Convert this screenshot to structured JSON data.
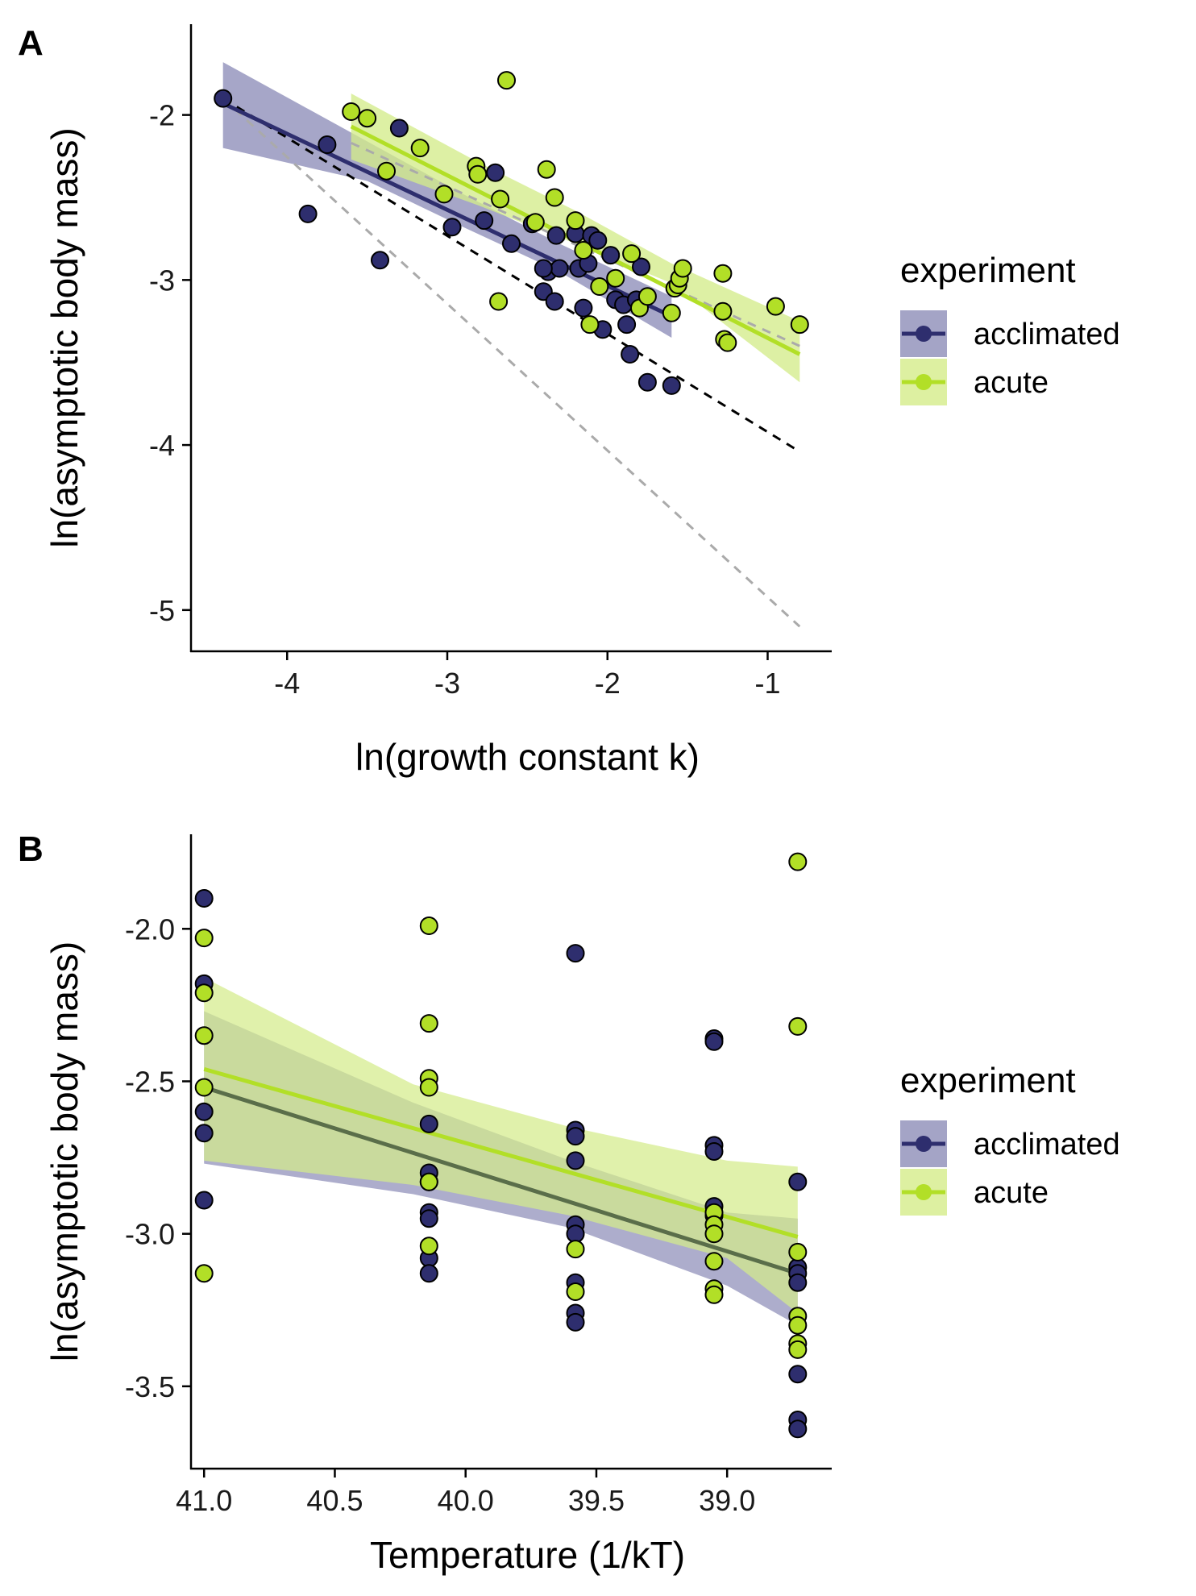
{
  "colors": {
    "acclimated": "#2e2e6e",
    "acute": "#b2df27",
    "acclimated_band": "#8d8db8",
    "acute_band": "#d4ec8a",
    "ref_black": "#000000",
    "ref_grey": "#aaaaaa"
  },
  "legend": {
    "title": "experiment",
    "items": [
      {
        "label": "acclimated",
        "key": "acclimated"
      },
      {
        "label": "acute",
        "key": "acute"
      }
    ]
  },
  "chart_data": [
    {
      "type": "scatter",
      "tag": "A",
      "xlabel": "ln(growth constant k)",
      "ylabel": "ln(asymptotic body mass)",
      "xlim": [
        -4.6,
        -0.6
      ],
      "ylim": [
        -5.25,
        -1.45
      ],
      "xticks": [
        -4,
        -3,
        -2,
        -1
      ],
      "xtick_labels": [
        "-4",
        "-3",
        "-2",
        "-1"
      ],
      "yticks": [
        -5,
        -4,
        -3,
        -2
      ],
      "ytick_labels": [
        "-5",
        "-4",
        "-3",
        "-2"
      ],
      "grid": false,
      "legend_position": "right",
      "reference_lines": [
        {
          "style": "dashed",
          "color": "black",
          "x": [
            -4.4,
            -0.8
          ],
          "y": [
            -1.9,
            -4.04
          ]
        },
        {
          "style": "dashed",
          "color": "grey",
          "x": [
            -4.4,
            -0.8
          ],
          "y": [
            -1.9,
            -5.1
          ]
        },
        {
          "style": "dashed",
          "color": "grey",
          "x": [
            -3.6,
            -0.8
          ],
          "y": [
            -2.17,
            -3.4
          ]
        }
      ],
      "series": [
        {
          "name": "acclimated",
          "fit": {
            "x": [
              -4.4,
              -1.6
            ],
            "y": [
              -1.93,
              -3.22
            ]
          },
          "band": {
            "x": [
              -4.4,
              -3.5,
              -2.9,
              -2.3,
              -1.6
            ],
            "lower": [
              -2.2,
              -2.4,
              -2.68,
              -2.95,
              -3.35
            ],
            "upper": [
              -1.68,
              -2.16,
              -2.48,
              -2.78,
              -3.1
            ]
          },
          "points": [
            [
              -4.4,
              -1.9
            ],
            [
              -3.87,
              -2.6
            ],
            [
              -3.75,
              -2.18
            ],
            [
              -3.42,
              -2.88
            ],
            [
              -3.3,
              -2.08
            ],
            [
              -2.97,
              -2.68
            ],
            [
              -2.77,
              -2.64
            ],
            [
              -2.7,
              -2.35
            ],
            [
              -2.6,
              -2.78
            ],
            [
              -2.47,
              -2.66
            ],
            [
              -2.4,
              -3.07
            ],
            [
              -2.37,
              -2.95
            ],
            [
              -2.33,
              -3.13
            ],
            [
              -2.32,
              -2.73
            ],
            [
              -2.3,
              -2.93
            ],
            [
              -2.2,
              -2.72
            ],
            [
              -2.18,
              -2.93
            ],
            [
              -2.12,
              -2.9
            ],
            [
              -2.1,
              -2.73
            ],
            [
              -2.06,
              -2.76
            ],
            [
              -2.03,
              -3.3
            ],
            [
              -1.98,
              -2.85
            ],
            [
              -1.95,
              -3.12
            ],
            [
              -1.9,
              -3.15
            ],
            [
              -1.88,
              -3.27
            ],
            [
              -1.86,
              -3.45
            ],
            [
              -1.82,
              -3.12
            ],
            [
              -1.79,
              -2.92
            ],
            [
              -1.75,
              -3.62
            ],
            [
              -1.6,
              -3.64
            ],
            [
              -2.4,
              -2.93
            ],
            [
              -2.15,
              -3.17
            ]
          ]
        },
        {
          "name": "acute",
          "fit": {
            "x": [
              -3.6,
              -0.8
            ],
            "y": [
              -2.07,
              -3.45
            ]
          },
          "band": {
            "x": [
              -3.6,
              -2.8,
              -2.2,
              -1.6,
              -0.8
            ],
            "lower": [
              -2.27,
              -2.55,
              -2.78,
              -3.02,
              -3.62
            ],
            "upper": [
              -1.87,
              -2.29,
              -2.58,
              -2.9,
              -3.25
            ]
          },
          "points": [
            [
              -3.6,
              -1.98
            ],
            [
              -3.5,
              -2.02
            ],
            [
              -3.38,
              -2.34
            ],
            [
              -3.17,
              -2.2
            ],
            [
              -3.02,
              -2.48
            ],
            [
              -2.82,
              -2.31
            ],
            [
              -2.81,
              -2.36
            ],
            [
              -2.67,
              -2.51
            ],
            [
              -2.68,
              -3.13
            ],
            [
              -2.63,
              -1.79
            ],
            [
              -2.38,
              -2.33
            ],
            [
              -2.33,
              -2.5
            ],
            [
              -2.2,
              -2.64
            ],
            [
              -2.15,
              -2.82
            ],
            [
              -2.11,
              -3.27
            ],
            [
              -2.05,
              -3.04
            ],
            [
              -1.95,
              -2.99
            ],
            [
              -1.85,
              -2.84
            ],
            [
              -1.8,
              -3.17
            ],
            [
              -1.75,
              -3.1
            ],
            [
              -1.6,
              -3.2
            ],
            [
              -1.58,
              -3.05
            ],
            [
              -1.56,
              -3.03
            ],
            [
              -1.55,
              -2.99
            ],
            [
              -1.53,
              -2.93
            ],
            [
              -1.28,
              -2.96
            ],
            [
              -1.28,
              -3.19
            ],
            [
              -1.27,
              -3.36
            ],
            [
              -1.25,
              -3.38
            ],
            [
              -0.95,
              -3.16
            ],
            [
              -0.8,
              -3.27
            ],
            [
              -2.45,
              -2.65
            ]
          ]
        }
      ]
    },
    {
      "type": "scatter",
      "tag": "B",
      "xlabel": "Temperature (1/kT)",
      "ylabel": "ln(asymptotic body mass)",
      "xlim": [
        41.05,
        38.6
      ],
      "ylim": [
        -3.77,
        -1.69
      ],
      "xticks": [
        41.0,
        40.5,
        40.0,
        39.5,
        39.0
      ],
      "xtick_labels": [
        "41.0",
        "40.5",
        "40.0",
        "39.5",
        "39.0"
      ],
      "yticks": [
        -2.0,
        -2.5,
        -3.0,
        -3.5
      ],
      "ytick_labels": [
        "-2.0",
        "-2.5",
        "-3.0",
        "-3.5"
      ],
      "grid": false,
      "legend_position": "right",
      "overlap_color": "#7f9a60",
      "overlap_line_color": "#5a6e4a",
      "series": [
        {
          "name": "acclimated",
          "fit": {
            "x": [
              41.0,
              38.73
            ],
            "y": [
              -2.52,
              -3.13
            ]
          },
          "band": {
            "x": [
              41.0,
              40.2,
              39.6,
              39.0,
              38.73
            ],
            "lower": [
              -2.77,
              -2.87,
              -2.98,
              -3.17,
              -3.3
            ],
            "upper": [
              -2.27,
              -2.57,
              -2.76,
              -2.93,
              -2.95
            ]
          },
          "points": [
            [
              41.0,
              -1.9
            ],
            [
              41.0,
              -2.18
            ],
            [
              41.0,
              -2.6
            ],
            [
              41.0,
              -2.67
            ],
            [
              41.0,
              -2.89
            ],
            [
              40.14,
              -2.64
            ],
            [
              40.14,
              -2.8
            ],
            [
              40.14,
              -2.83
            ],
            [
              40.14,
              -2.93
            ],
            [
              40.14,
              -2.95
            ],
            [
              40.14,
              -3.08
            ],
            [
              40.14,
              -3.13
            ],
            [
              39.58,
              -2.08
            ],
            [
              39.58,
              -2.66
            ],
            [
              39.58,
              -2.68
            ],
            [
              39.58,
              -2.76
            ],
            [
              39.58,
              -2.97
            ],
            [
              39.58,
              -3.0
            ],
            [
              39.58,
              -3.16
            ],
            [
              39.58,
              -3.26
            ],
            [
              39.58,
              -3.29
            ],
            [
              39.05,
              -2.36
            ],
            [
              39.05,
              -2.37
            ],
            [
              39.05,
              -2.71
            ],
            [
              39.05,
              -2.73
            ],
            [
              39.05,
              -2.91
            ],
            [
              39.05,
              -2.94
            ],
            [
              38.73,
              -2.83
            ],
            [
              38.73,
              -3.11
            ],
            [
              38.73,
              -3.13
            ],
            [
              38.73,
              -3.16
            ],
            [
              38.73,
              -3.46
            ],
            [
              38.73,
              -3.61
            ],
            [
              38.73,
              -3.64
            ]
          ]
        },
        {
          "name": "acute",
          "fit": {
            "x": [
              41.0,
              38.73
            ],
            "y": [
              -2.46,
              -3.01
            ]
          },
          "band": {
            "x": [
              41.0,
              40.2,
              39.6,
              39.0,
              38.73
            ],
            "lower": [
              -2.76,
              -2.84,
              -2.94,
              -3.08,
              -3.26
            ],
            "upper": [
              -2.16,
              -2.51,
              -2.65,
              -2.76,
              -2.78
            ]
          },
          "points": [
            [
              41.0,
              -2.03
            ],
            [
              41.0,
              -2.21
            ],
            [
              41.0,
              -2.35
            ],
            [
              41.0,
              -2.52
            ],
            [
              41.0,
              -3.13
            ],
            [
              40.14,
              -1.99
            ],
            [
              40.14,
              -2.31
            ],
            [
              40.14,
              -2.49
            ],
            [
              40.14,
              -2.52
            ],
            [
              40.14,
              -2.83
            ],
            [
              40.14,
              -3.04
            ],
            [
              39.58,
              -3.05
            ],
            [
              39.58,
              -3.19
            ],
            [
              39.05,
              -2.93
            ],
            [
              39.05,
              -2.97
            ],
            [
              39.05,
              -3.0
            ],
            [
              39.05,
              -3.09
            ],
            [
              39.05,
              -3.18
            ],
            [
              39.05,
              -3.2
            ],
            [
              38.73,
              -1.78
            ],
            [
              38.73,
              -2.32
            ],
            [
              38.73,
              -3.06
            ],
            [
              38.73,
              -3.27
            ],
            [
              38.73,
              -3.3
            ],
            [
              38.73,
              -3.36
            ],
            [
              38.73,
              -3.38
            ]
          ]
        }
      ]
    }
  ]
}
